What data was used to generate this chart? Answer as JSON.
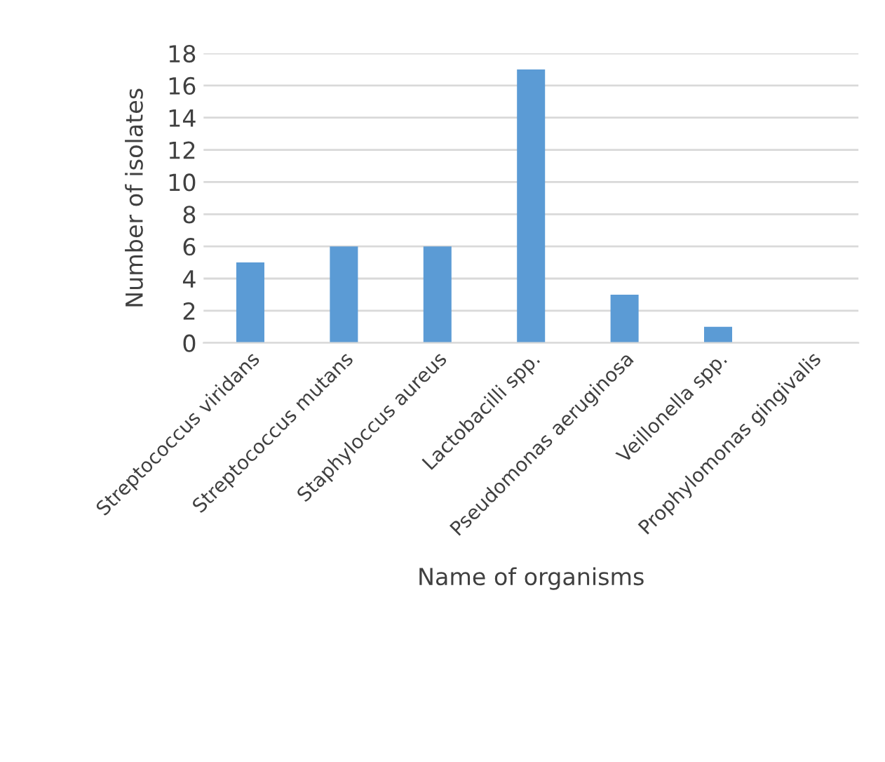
{
  "chart_data": {
    "type": "bar",
    "xlabel": "Name of organisms",
    "ylabel": "Number of isolates",
    "categories": [
      "Streptococcus viridans",
      "Streptococcus mutans",
      "Staphyloccus aureus",
      "Lactobacilli spp.",
      "Pseudomonas aeruginosa",
      "Veillonella spp.",
      "Prophylomonas gingivalis"
    ],
    "values": [
      5,
      6,
      6,
      17,
      3,
      1,
      0
    ],
    "color": "#5b9bd5",
    "ylim": [
      0,
      18
    ],
    "yticks": [
      0,
      2,
      4,
      6,
      8,
      10,
      12,
      14,
      16,
      18
    ],
    "grid": "y",
    "legend": false
  }
}
